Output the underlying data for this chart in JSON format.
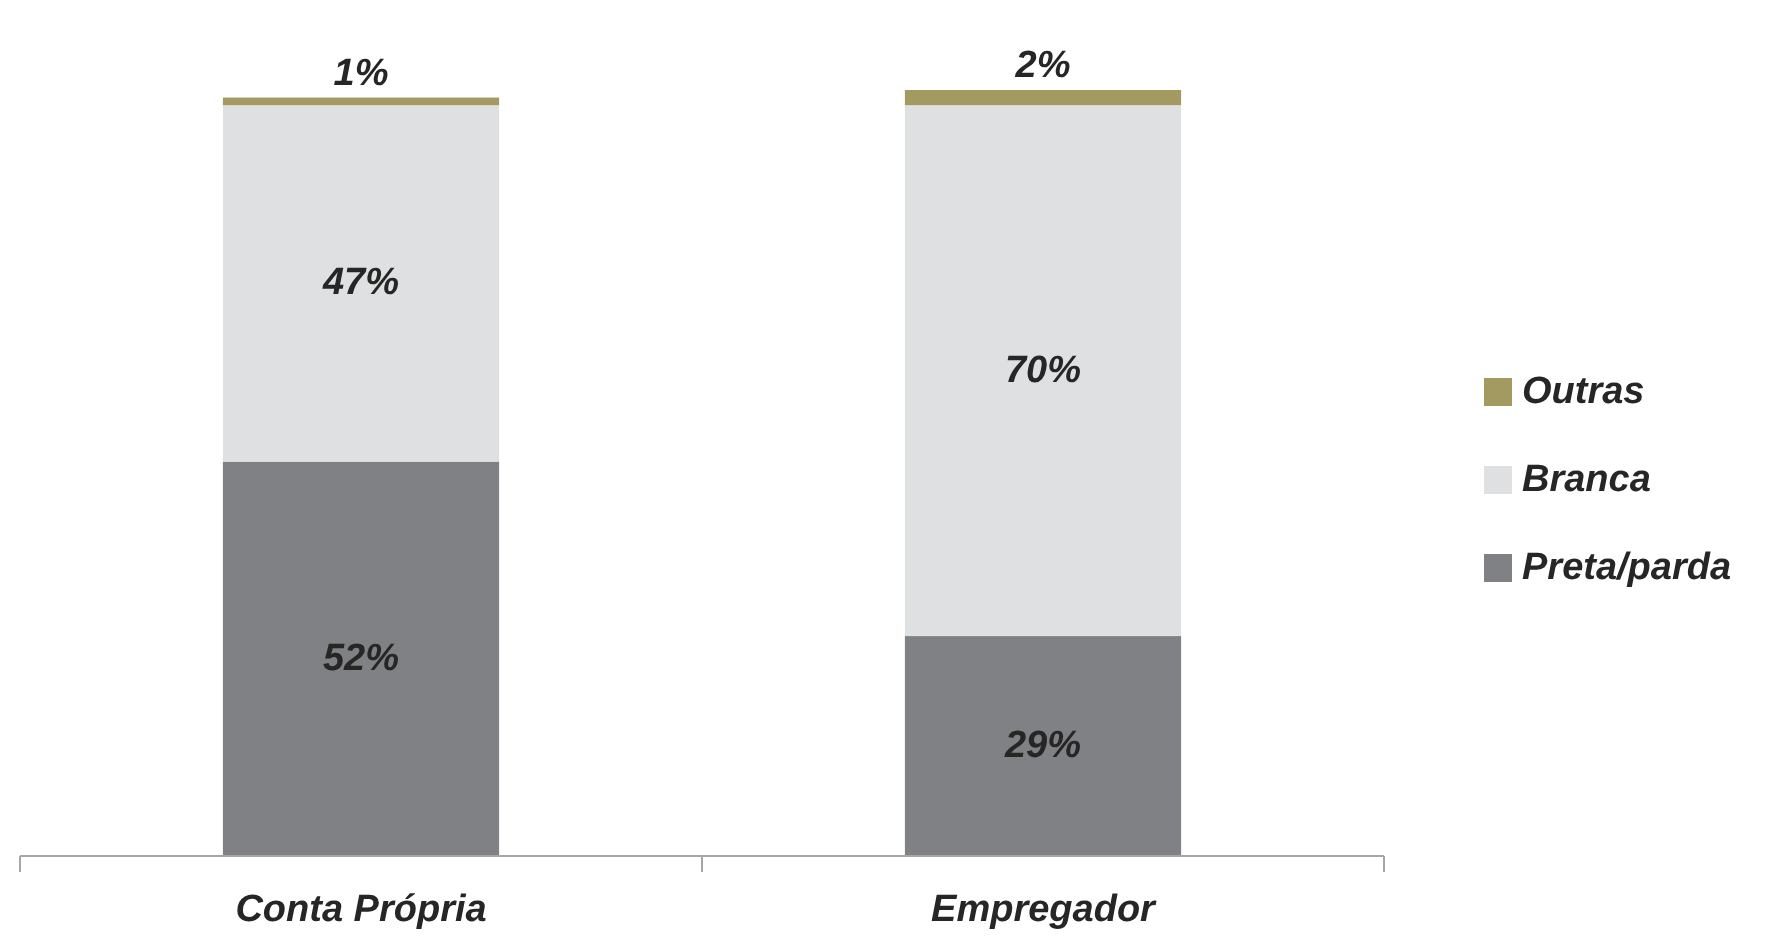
{
  "chart_data": {
    "type": "bar",
    "categories": [
      "Conta Própria",
      "Empregador"
    ],
    "stacked": true,
    "legend": "right",
    "series": [
      {
        "name": "Preta/parda",
        "color": "#808184",
        "values": [
          52,
          29
        ],
        "value_labels": [
          "52%",
          "29%"
        ]
      },
      {
        "name": "Branca",
        "color": "#dfe0e2",
        "values": [
          47,
          70
        ],
        "value_labels": [
          "47%",
          "70%"
        ]
      },
      {
        "name": "Outras",
        "color": "#a39a62",
        "values": [
          1,
          2
        ],
        "value_labels": [
          "1%",
          "2%"
        ]
      }
    ]
  }
}
